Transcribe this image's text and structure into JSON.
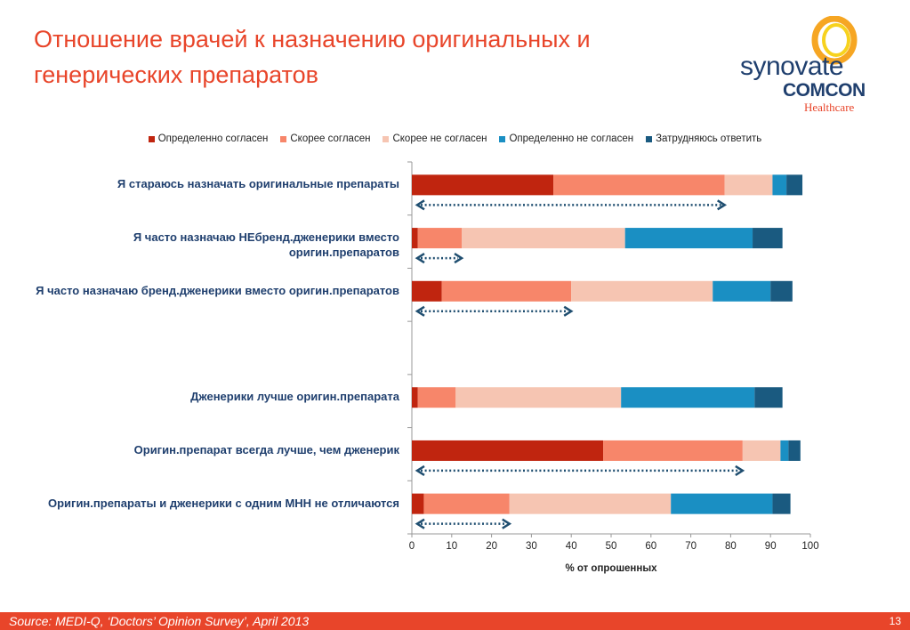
{
  "slide": {
    "title": "Отношение врачей к назначению оригинальных и генерических препаратов",
    "logo": {
      "word1": "synovate",
      "word2": "COMCON",
      "word3": "Healthcare"
    },
    "source": "Source:  MEDI-Q, ‘Doctors’ Opinion Survey’, April 2013",
    "page_number": "13"
  },
  "chart_data": {
    "type": "bar",
    "orientation": "horizontal",
    "stacked": true,
    "xlabel": "% от опрошенных",
    "xlim": [
      0,
      100
    ],
    "xticks": [
      "0",
      "10",
      "20",
      "30",
      "40",
      "50",
      "60",
      "70",
      "80",
      "90",
      "100"
    ],
    "legend_position": "top",
    "categories": [
      "Я стараюсь назначать оригинальные препараты",
      "Я часто назначаю НЕбренд.дженерики вместо оригин.препаратов",
      "Я часто назначаю бренд.дженерики вместо оригин.препаратов",
      "",
      "Дженерики лучше оригин.препарата",
      "Оригин.препарат всегда лучше, чем дженерик",
      "Оригин.препараты и дженерики с одним МНН не отличаются"
    ],
    "series": [
      {
        "name": "Определенно согласен",
        "color": "#c0250f",
        "values": [
          35.5,
          1.5,
          7.5,
          0,
          1.5,
          48,
          3
        ]
      },
      {
        "name": "Скорее согласен",
        "color": "#f7866a",
        "values": [
          43,
          11,
          32.5,
          0,
          9.5,
          35,
          21.5
        ]
      },
      {
        "name": "Скорее не согласен",
        "color": "#f6c5b2",
        "values": [
          12,
          41,
          35.5,
          0,
          41.5,
          9.5,
          40.5
        ]
      },
      {
        "name": "Определенно не согласен",
        "color": "#1a8fc3",
        "values": [
          3.5,
          32,
          14.5,
          0,
          33.5,
          2,
          25.5
        ]
      },
      {
        "name": "Затрудняюсь ответить",
        "color": "#1a5a80",
        "values": [
          4,
          7.5,
          5.5,
          0,
          7,
          3,
          4.5
        ]
      }
    ],
    "arrows": [
      {
        "row": 0,
        "value": 78.5
      },
      {
        "row": 1,
        "value": 12.5
      },
      {
        "row": 2,
        "value": 40
      },
      {
        "row": 5,
        "value": 83
      },
      {
        "row": 6,
        "value": 24.5
      }
    ],
    "arrow_color": "#1f4e70"
  }
}
